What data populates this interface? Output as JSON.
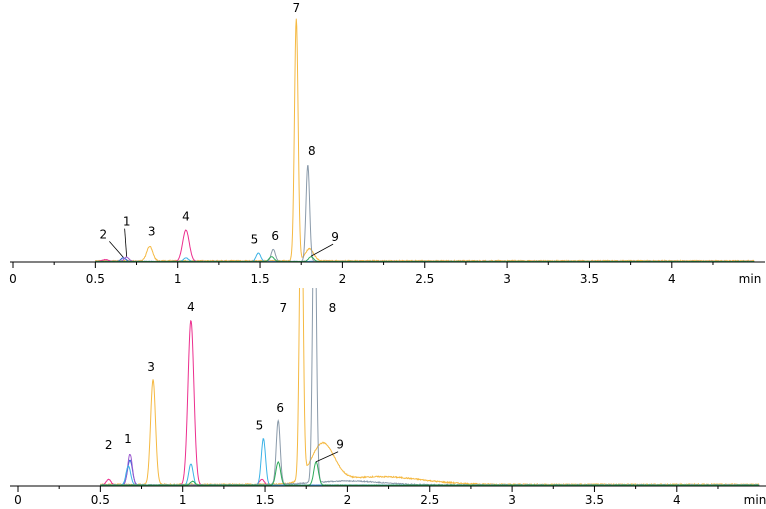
{
  "chart_data": [
    {
      "type": "line",
      "panel": "top",
      "xlabel": "min",
      "xlim": [
        0,
        4.5
      ],
      "ylim": [
        0,
        100
      ],
      "xticks": [
        0,
        0.5,
        1,
        1.5,
        2,
        2.5,
        3,
        3.5,
        4
      ],
      "tick_labels": [
        "0",
        "0.5",
        "1",
        "1.5",
        "2",
        "2.5",
        "3",
        "3.5",
        "4"
      ],
      "grid": false,
      "peak_labels": [
        {
          "label": "1",
          "x": 0.69,
          "y": 1.8
        },
        {
          "label": "2",
          "x": 0.67,
          "y": 1.5
        },
        {
          "label": "3",
          "x": 0.83,
          "y": 6
        },
        {
          "label": "4",
          "x": 1.05,
          "y": 13
        },
        {
          "label": "5",
          "x": 1.49,
          "y": 3.5
        },
        {
          "label": "6",
          "x": 1.58,
          "y": 5
        },
        {
          "label": "7",
          "x": 1.72,
          "y": 100
        },
        {
          "label": "8",
          "x": 1.79,
          "y": 40
        },
        {
          "label": "9",
          "x": 1.81,
          "y": 2
        }
      ],
      "series": [
        {
          "color": "#f5b942",
          "baseline": 0.5,
          "peaks": [
            {
              "x": 0.83,
              "h": 6,
              "w": 0.018
            },
            {
              "x": 1.72,
              "h": 100,
              "w": 0.011
            },
            {
              "x": 1.8,
              "h": 5,
              "w": 0.025
            }
          ]
        },
        {
          "color": "#ec2f8e",
          "baseline": 0.2,
          "peaks": [
            {
              "x": 1.05,
              "h": 13,
              "w": 0.02
            },
            {
              "x": 0.56,
              "h": 0.8,
              "w": 0.02
            }
          ]
        },
        {
          "color": "#2b5fd6",
          "baseline": 0.2,
          "peaks": [
            {
              "x": 0.67,
              "h": 1.5,
              "w": 0.015
            }
          ]
        },
        {
          "color": "#9b59d0",
          "baseline": 0.2,
          "peaks": [
            {
              "x": 0.69,
              "h": 1.8,
              "w": 0.015
            }
          ]
        },
        {
          "color": "#3bb2e6",
          "baseline": 0.2,
          "peaks": [
            {
              "x": 1.49,
              "h": 3.5,
              "w": 0.014
            },
            {
              "x": 1.05,
              "h": 1.5,
              "w": 0.015
            }
          ]
        },
        {
          "color": "#8a9aaa",
          "baseline": 0.2,
          "peaks": [
            {
              "x": 1.58,
              "h": 5,
              "w": 0.013
            },
            {
              "x": 1.79,
              "h": 40,
              "w": 0.011
            }
          ]
        },
        {
          "color": "#2eaa5a",
          "baseline": 0.2,
          "peaks": [
            {
              "x": 1.57,
              "h": 2,
              "w": 0.015
            },
            {
              "x": 1.81,
              "h": 2,
              "w": 0.015
            }
          ]
        }
      ]
    },
    {
      "type": "line",
      "panel": "bottom",
      "xlabel": "min",
      "xlim": [
        0,
        4.5
      ],
      "ylim": [
        0,
        100
      ],
      "xticks": [
        0,
        0.5,
        1,
        1.5,
        2,
        2.5,
        3,
        3.5,
        4
      ],
      "tick_labels": [
        "0",
        "0.5",
        "1",
        "1.5",
        "2",
        "2.5",
        "3",
        "3.5",
        "4"
      ],
      "grid": false,
      "peak_labels": [
        {
          "label": "1",
          "x": 0.68,
          "y": 16
        },
        {
          "label": "2",
          "x": 0.66,
          "y": 14
        },
        {
          "label": "3",
          "x": 0.82,
          "y": 54
        },
        {
          "label": "4",
          "x": 1.05,
          "y": 85
        },
        {
          "label": "5",
          "x": 1.49,
          "y": 24
        },
        {
          "label": "6",
          "x": 1.58,
          "y": 33
        },
        {
          "label": "7",
          "x": 1.72,
          "y": 100
        },
        {
          "label": "8",
          "x": 1.8,
          "y": 100
        },
        {
          "label": "9",
          "x": 1.81,
          "y": 12
        }
      ],
      "series": [
        {
          "color": "#f5b942",
          "baseline": 0.8,
          "peaks": [
            {
              "x": 0.82,
              "h": 54,
              "w": 0.015
            },
            {
              "x": 1.72,
              "h": 160,
              "w": 0.011
            },
            {
              "x": 1.85,
              "h": 20,
              "w": 0.07
            },
            {
              "x": 2.2,
              "h": 4,
              "w": 0.25
            }
          ]
        },
        {
          "color": "#ec2f8e",
          "baseline": 0.4,
          "peaks": [
            {
              "x": 1.05,
              "h": 85,
              "w": 0.018
            },
            {
              "x": 0.55,
              "h": 3,
              "w": 0.015
            },
            {
              "x": 1.48,
              "h": 3,
              "w": 0.015
            }
          ]
        },
        {
          "color": "#2b5fd6",
          "baseline": 0.4,
          "peaks": [
            {
              "x": 0.68,
              "h": 13,
              "w": 0.015
            }
          ]
        },
        {
          "color": "#9b59d0",
          "baseline": 0.4,
          "peaks": [
            {
              "x": 0.68,
              "h": 16,
              "w": 0.014
            }
          ]
        },
        {
          "color": "#3bb2e6",
          "baseline": 0.4,
          "peaks": [
            {
              "x": 1.49,
              "h": 24,
              "w": 0.013
            },
            {
              "x": 1.05,
              "h": 11,
              "w": 0.013
            },
            {
              "x": 0.67,
              "h": 10,
              "w": 0.014
            }
          ]
        },
        {
          "color": "#8a9aaa",
          "baseline": 0.6,
          "peaks": [
            {
              "x": 1.58,
              "h": 33,
              "w": 0.012
            },
            {
              "x": 1.8,
              "h": 160,
              "w": 0.011
            },
            {
              "x": 2.0,
              "h": 2,
              "w": 0.2
            }
          ]
        },
        {
          "color": "#2eaa5a",
          "baseline": 0.4,
          "peaks": [
            {
              "x": 1.58,
              "h": 12,
              "w": 0.014
            },
            {
              "x": 1.81,
              "h": 12,
              "w": 0.014
            },
            {
              "x": 1.06,
              "h": 2,
              "w": 0.014
            }
          ]
        }
      ]
    }
  ]
}
